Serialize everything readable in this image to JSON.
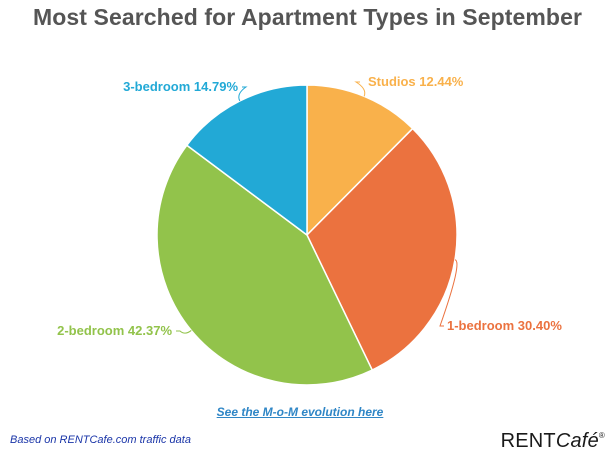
{
  "chart_data": {
    "type": "pie",
    "title": "Most Searched for Apartment Types in September",
    "slices": [
      {
        "label": "Studios",
        "display": "Studios 12.44%",
        "value": 12.44,
        "color": "#F9B14B",
        "label_color": "#F9B14B"
      },
      {
        "label": "1-bedroom",
        "display": "1-bedroom 30.40%",
        "value": 30.4,
        "color": "#EB723F",
        "label_color": "#EB723F"
      },
      {
        "label": "2-bedroom",
        "display": "2-bedroom 42.37%",
        "value": 42.37,
        "color": "#92C34B",
        "label_color": "#92C34B"
      },
      {
        "label": "3-bedroom",
        "display": "3-bedroom 14.79%",
        "value": 14.79,
        "color": "#22A9D6",
        "label_color": "#22A9D6"
      }
    ]
  },
  "link": {
    "text": "See the M-o-M evolution here"
  },
  "footer": {
    "source_note": "Based on RENTCafe.com traffic data",
    "brand_rent": "RENT",
    "brand_cafe": "Café",
    "brand_reg": "®"
  }
}
